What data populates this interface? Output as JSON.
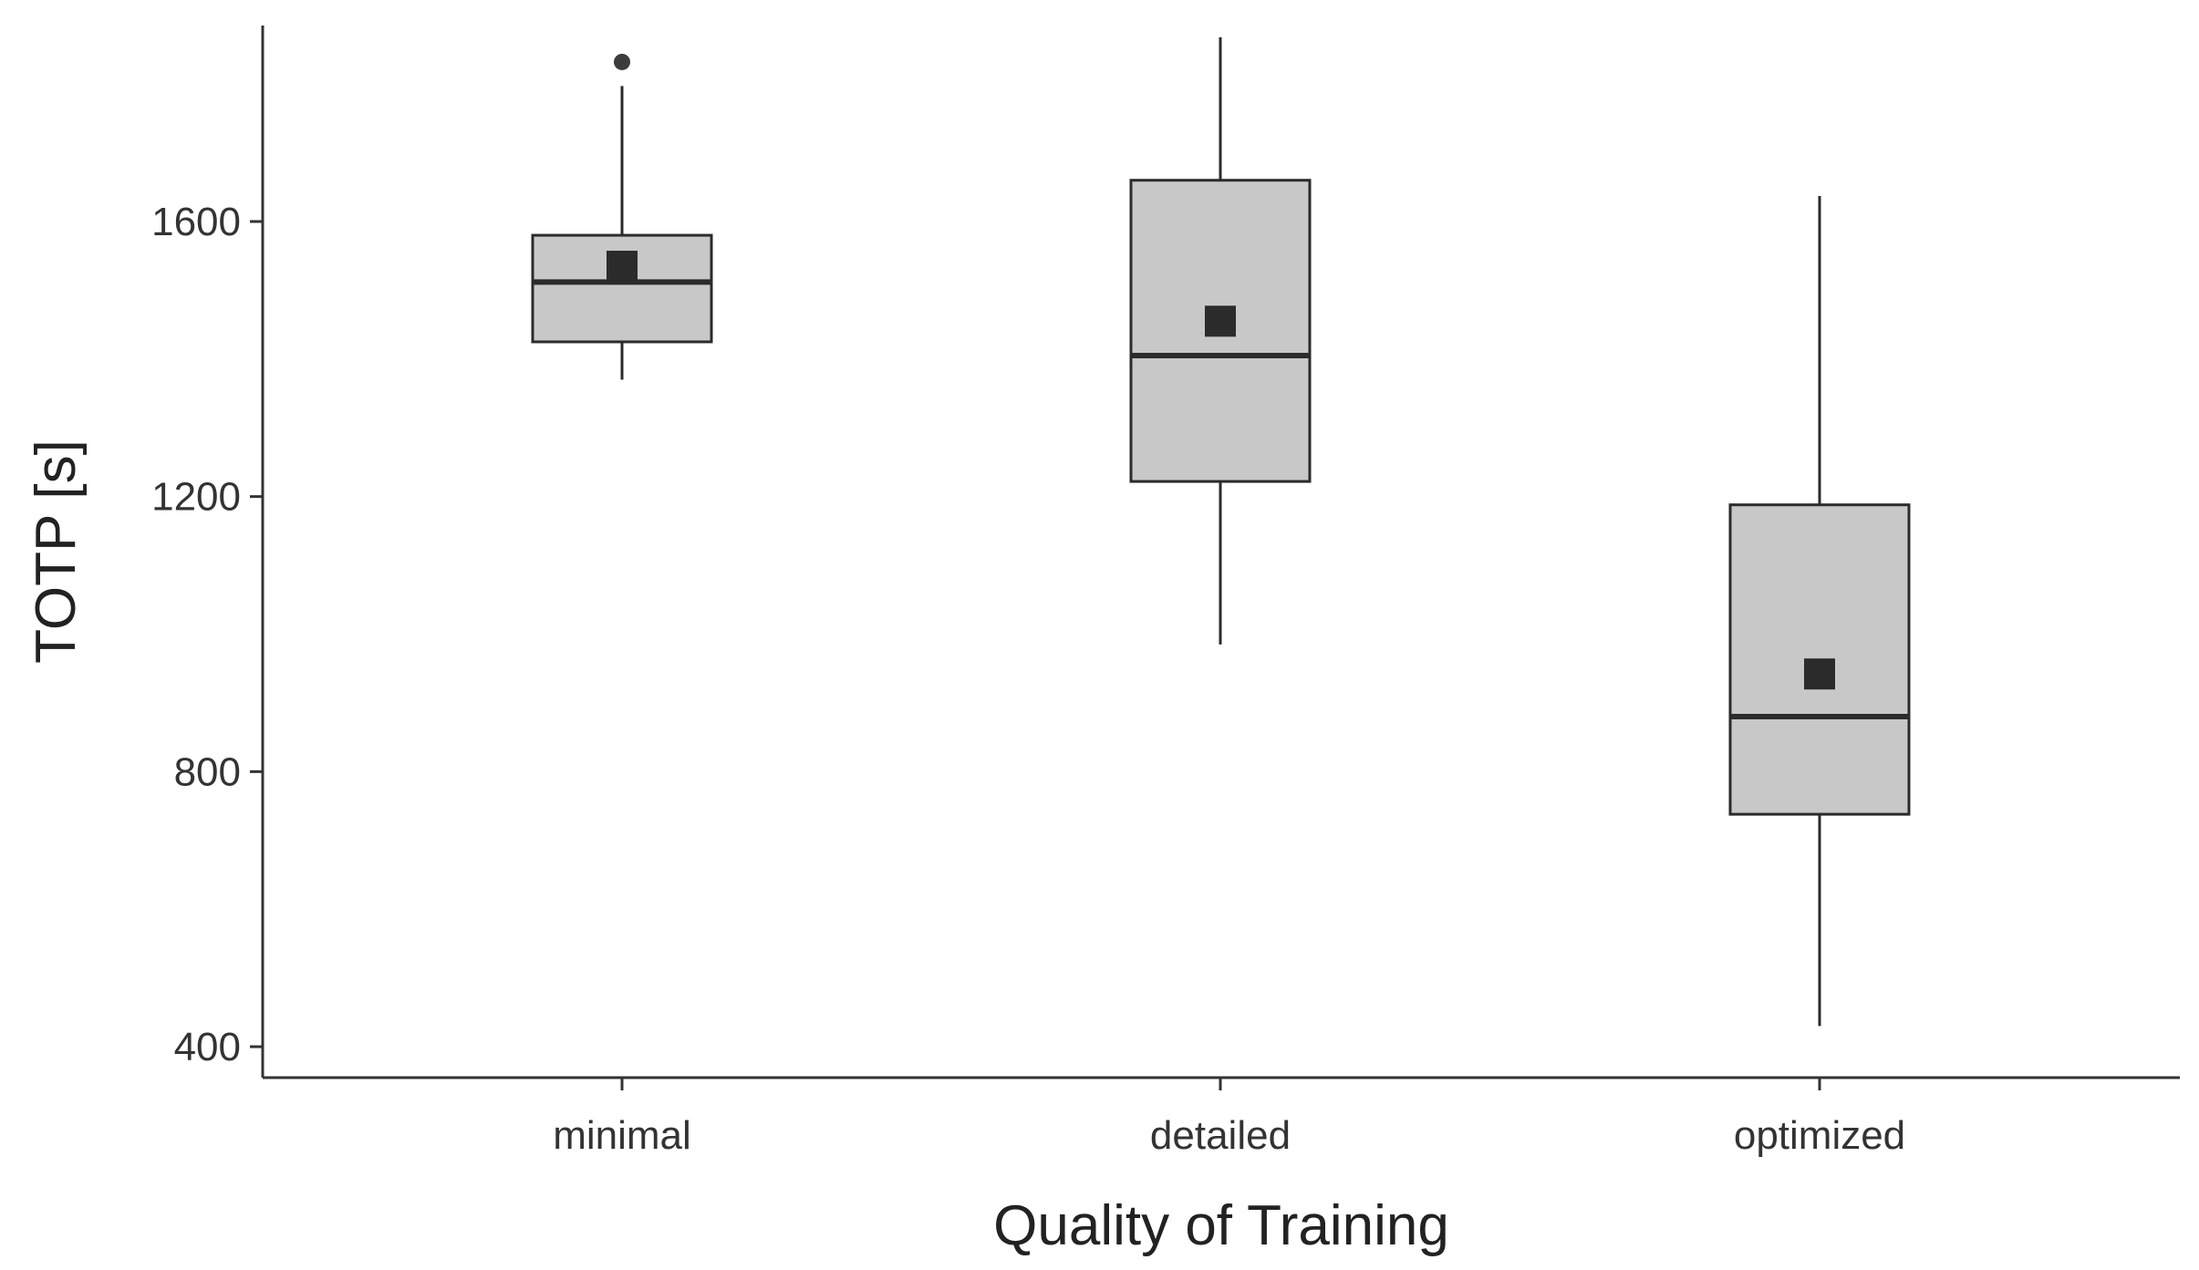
{
  "chart_data": {
    "type": "box",
    "title": "",
    "xlabel": "Quality of Training",
    "ylabel": "TOTP [s]",
    "categories": [
      "minimal",
      "detailed",
      "optimized"
    ],
    "ylim": [
      355,
      1885
    ],
    "yticks": [
      400,
      800,
      1200,
      1600
    ],
    "ytick_labels": [
      "400",
      "800",
      "1200",
      "1600"
    ],
    "grid": false,
    "boxes": [
      {
        "category": "minimal",
        "whisker_low": 1370,
        "q1": 1425,
        "median": 1512,
        "q3": 1580,
        "whisker_high": 1797,
        "mean": 1535,
        "outliers": [
          1832
        ]
      },
      {
        "category": "detailed",
        "whisker_low": 985,
        "q1": 1222,
        "median": 1405,
        "q3": 1660,
        "whisker_high": 1868,
        "mean": 1455,
        "outliers": []
      },
      {
        "category": "optimized",
        "whisker_low": 430,
        "q1": 738,
        "median": 880,
        "q3": 1188,
        "whisker_high": 1637,
        "mean": 942,
        "outliers": []
      }
    ],
    "colors": {
      "box_fill": "#c8c8c8",
      "stroke": "#2b2b2b",
      "mean_marker": "#2b2b2b",
      "outlier": "#3c3c3c"
    }
  }
}
